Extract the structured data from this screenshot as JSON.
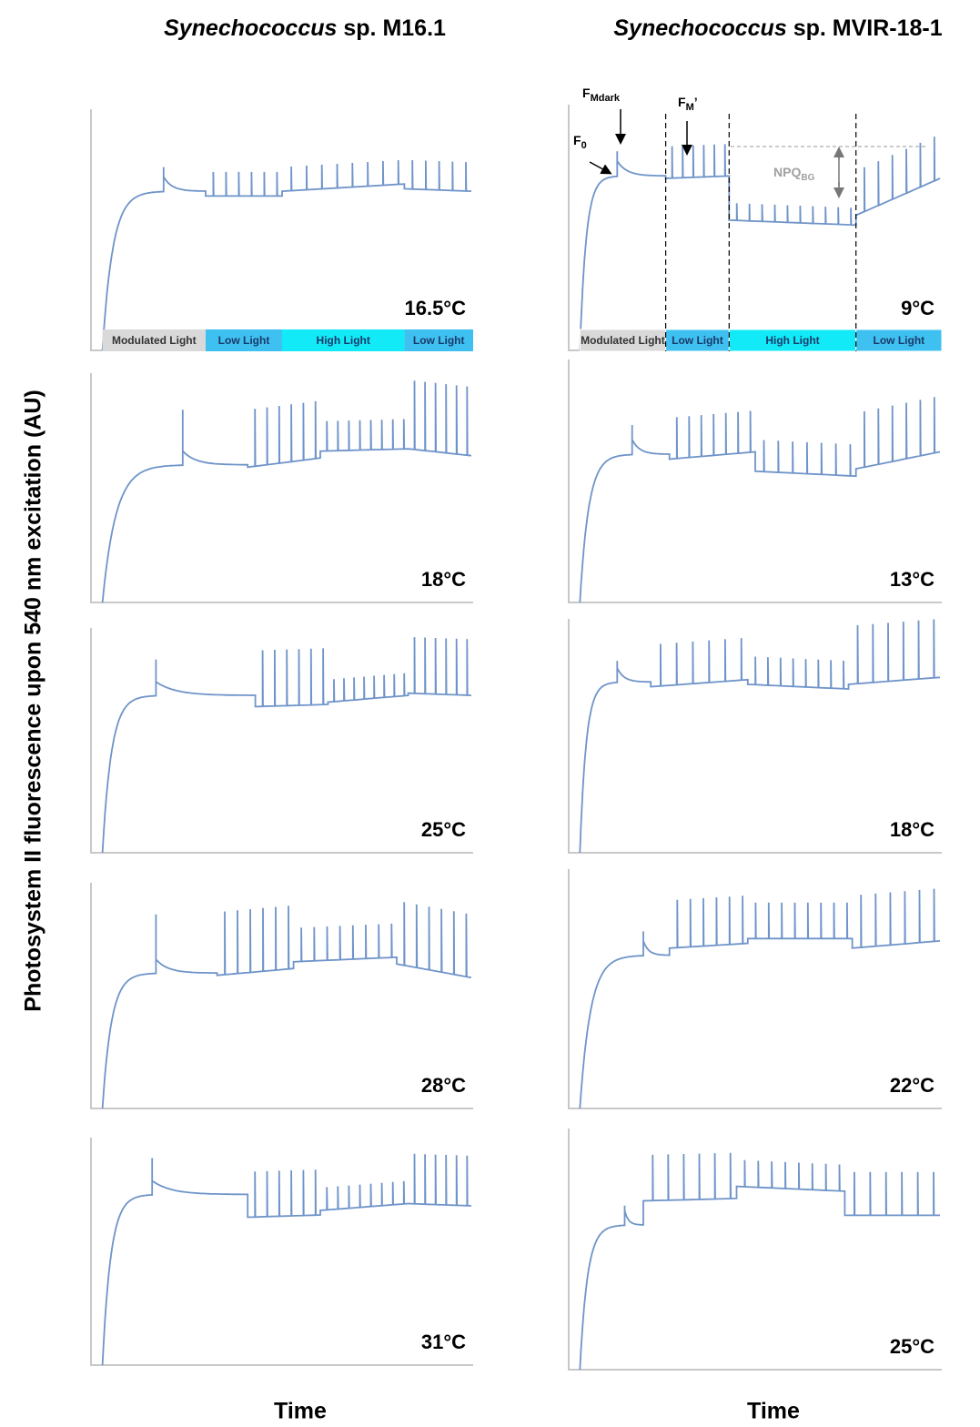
{
  "y_axis_label": "Photosystem II fluorescence upon 540 nm excitation (AU)",
  "columns": [
    {
      "title_italic": "Synechococcus",
      "title_rest": "sp. M16.1",
      "x_label": "Time",
      "light_bar": [
        "Modulated Light",
        "Low Light",
        "High Light",
        "Low Light"
      ],
      "panels": [
        {
          "temperature": "16.5°C"
        },
        {
          "temperature": "18°C"
        },
        {
          "temperature": "25°C"
        },
        {
          "temperature": "28°C"
        },
        {
          "temperature": "31°C"
        }
      ]
    },
    {
      "title_italic": "Synechococcus",
      "title_rest": "sp. MVIR-18-1",
      "x_label": "Time",
      "light_bar": [
        "Modulated Light",
        "Low Light",
        "High Light",
        "Low Light"
      ],
      "panels": [
        {
          "temperature": "9°C"
        },
        {
          "temperature": "13°C"
        },
        {
          "temperature": "18°C"
        },
        {
          "temperature": "22°C"
        },
        {
          "temperature": "25°C"
        }
      ]
    }
  ],
  "annotations": {
    "f0": "F",
    "f0_sub": "0",
    "fmdark": "F",
    "fmdark_sub": "Mdark",
    "fm": "F",
    "fm_sub": "M",
    "fm_prime": "’",
    "npq": "NPQ",
    "npq_sub": "BG"
  }
}
